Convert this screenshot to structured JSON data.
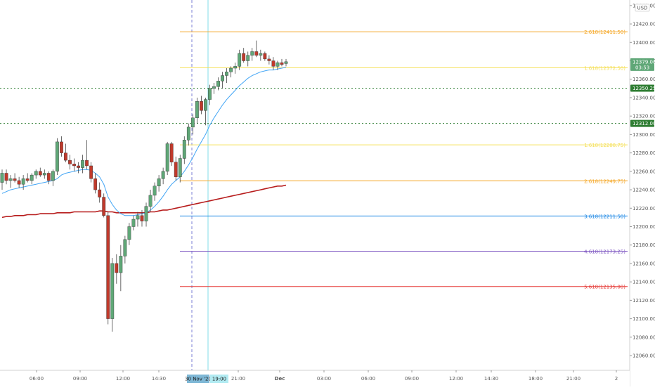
{
  "chart_data": {
    "type": "candlestick",
    "currency": "USD",
    "y_range": [
      12044,
      12446
    ],
    "y_ticks": [
      12060,
      12080,
      12100,
      12120,
      12140,
      12160,
      12180,
      12200,
      12220,
      12240,
      12260,
      12280,
      12300,
      12320,
      12340,
      12360,
      12380,
      12400,
      12420,
      12440
    ],
    "x_ticks": [
      "06:00",
      "09:00",
      "12:00",
      "14:30",
      "21:00",
      "Dec",
      "03:00",
      "06:00",
      "09:00",
      "12:00",
      "14:30",
      "18:00",
      "21:00",
      "2"
    ],
    "date_label": "30 Nov '20",
    "time_label": "19:00",
    "last_price": {
      "value": "12379.00",
      "countdown": "03:53"
    },
    "price_labels": [
      {
        "value": "12350.25",
        "color": "#2e7d32"
      },
      {
        "value": "12312.00",
        "color": "#2e7d32"
      }
    ],
    "fib_levels": [
      {
        "ratio": "2.618",
        "value": 12411.5,
        "label": "2.618(12411.50)",
        "color": "#f5a623"
      },
      {
        "ratio": "1.618",
        "value": 12372.5,
        "label": "1.618(12372.50)",
        "color": "#f5e05a"
      },
      {
        "ratio": "1.618",
        "value": 12288.75,
        "label": "1.618(12288.75)",
        "color": "#f5e05a"
      },
      {
        "ratio": "2.618",
        "value": 12249.75,
        "label": "2.618(12249.75)",
        "color": "#f5a623"
      },
      {
        "ratio": "3.618",
        "value": 12211.5,
        "label": "3.618(12211.50)",
        "color": "#1e88e5"
      },
      {
        "ratio": "4.618",
        "value": 12173.25,
        "label": "4.618(12173.25)",
        "color": "#7e57c2"
      },
      {
        "ratio": "5.618",
        "value": 12135.0,
        "label": "5.618(12135.00)",
        "color": "#e53935"
      }
    ],
    "horizontal_lines": [
      {
        "value": 12350.25,
        "color": "#2e7d32",
        "style": "dotted"
      },
      {
        "value": 12312.0,
        "color": "#2e7d32",
        "style": "dotted"
      }
    ],
    "candles": [
      {
        "o": 12248,
        "h": 12262,
        "l": 12240,
        "c": 12258
      },
      {
        "o": 12258,
        "h": 12262,
        "l": 12246,
        "c": 12250
      },
      {
        "o": 12250,
        "h": 12256,
        "l": 12242,
        "c": 12252
      },
      {
        "o": 12252,
        "h": 12258,
        "l": 12248,
        "c": 12250
      },
      {
        "o": 12250,
        "h": 12254,
        "l": 12242,
        "c": 12246
      },
      {
        "o": 12246,
        "h": 12256,
        "l": 12240,
        "c": 12252
      },
      {
        "o": 12252,
        "h": 12258,
        "l": 12248,
        "c": 12250
      },
      {
        "o": 12250,
        "h": 12258,
        "l": 12246,
        "c": 12256
      },
      {
        "o": 12256,
        "h": 12262,
        "l": 12252,
        "c": 12260
      },
      {
        "o": 12260,
        "h": 12264,
        "l": 12254,
        "c": 12256
      },
      {
        "o": 12256,
        "h": 12262,
        "l": 12252,
        "c": 12258
      },
      {
        "o": 12258,
        "h": 12260,
        "l": 12246,
        "c": 12250
      },
      {
        "o": 12250,
        "h": 12262,
        "l": 12244,
        "c": 12260
      },
      {
        "o": 12260,
        "h": 12296,
        "l": 12256,
        "c": 12292
      },
      {
        "o": 12292,
        "h": 12298,
        "l": 12276,
        "c": 12280
      },
      {
        "o": 12280,
        "h": 12290,
        "l": 12270,
        "c": 12272
      },
      {
        "o": 12272,
        "h": 12278,
        "l": 12262,
        "c": 12268
      },
      {
        "o": 12268,
        "h": 12274,
        "l": 12260,
        "c": 12266
      },
      {
        "o": 12266,
        "h": 12270,
        "l": 12258,
        "c": 12264
      },
      {
        "o": 12264,
        "h": 12278,
        "l": 12258,
        "c": 12272
      },
      {
        "o": 12272,
        "h": 12294,
        "l": 12262,
        "c": 12266
      },
      {
        "o": 12266,
        "h": 12270,
        "l": 12248,
        "c": 12252
      },
      {
        "o": 12252,
        "h": 12258,
        "l": 12236,
        "c": 12240
      },
      {
        "o": 12240,
        "h": 12248,
        "l": 12226,
        "c": 12232
      },
      {
        "o": 12232,
        "h": 12236,
        "l": 12210,
        "c": 12212
      },
      {
        "o": 12212,
        "h": 12216,
        "l": 12094,
        "c": 12100
      },
      {
        "o": 12100,
        "h": 12166,
        "l": 12086,
        "c": 12160
      },
      {
        "o": 12160,
        "h": 12170,
        "l": 12138,
        "c": 12150
      },
      {
        "o": 12150,
        "h": 12180,
        "l": 12130,
        "c": 12168
      },
      {
        "o": 12168,
        "h": 12190,
        "l": 12160,
        "c": 12186
      },
      {
        "o": 12186,
        "h": 12204,
        "l": 12180,
        "c": 12200
      },
      {
        "o": 12200,
        "h": 12212,
        "l": 12196,
        "c": 12208
      },
      {
        "o": 12208,
        "h": 12216,
        "l": 12200,
        "c": 12212
      },
      {
        "o": 12212,
        "h": 12218,
        "l": 12200,
        "c": 12206
      },
      {
        "o": 12206,
        "h": 12226,
        "l": 12200,
        "c": 12222
      },
      {
        "o": 12222,
        "h": 12240,
        "l": 12216,
        "c": 12234
      },
      {
        "o": 12234,
        "h": 12248,
        "l": 12228,
        "c": 12244
      },
      {
        "o": 12244,
        "h": 12256,
        "l": 12238,
        "c": 12252
      },
      {
        "o": 12252,
        "h": 12264,
        "l": 12246,
        "c": 12260
      },
      {
        "o": 12260,
        "h": 12292,
        "l": 12256,
        "c": 12290
      },
      {
        "o": 12290,
        "h": 12292,
        "l": 12266,
        "c": 12270
      },
      {
        "o": 12270,
        "h": 12276,
        "l": 12250,
        "c": 12254
      },
      {
        "o": 12254,
        "h": 12278,
        "l": 12248,
        "c": 12274
      },
      {
        "o": 12274,
        "h": 12298,
        "l": 12268,
        "c": 12294
      },
      {
        "o": 12294,
        "h": 12312,
        "l": 12288,
        "c": 12308
      },
      {
        "o": 12308,
        "h": 12322,
        "l": 12300,
        "c": 12318
      },
      {
        "o": 12318,
        "h": 12340,
        "l": 12312,
        "c": 12336
      },
      {
        "o": 12336,
        "h": 12342,
        "l": 12322,
        "c": 12326
      },
      {
        "o": 12326,
        "h": 12340,
        "l": 12310,
        "c": 12338
      },
      {
        "o": 12338,
        "h": 12354,
        "l": 12332,
        "c": 12350
      },
      {
        "o": 12350,
        "h": 12356,
        "l": 12344,
        "c": 12352
      },
      {
        "o": 12352,
        "h": 12362,
        "l": 12348,
        "c": 12358
      },
      {
        "o": 12358,
        "h": 12368,
        "l": 12350,
        "c": 12364
      },
      {
        "o": 12364,
        "h": 12372,
        "l": 12356,
        "c": 12368
      },
      {
        "o": 12368,
        "h": 12374,
        "l": 12362,
        "c": 12372
      },
      {
        "o": 12372,
        "h": 12378,
        "l": 12366,
        "c": 12374
      },
      {
        "o": 12374,
        "h": 12392,
        "l": 12370,
        "c": 12388
      },
      {
        "o": 12388,
        "h": 12394,
        "l": 12378,
        "c": 12380
      },
      {
        "o": 12380,
        "h": 12390,
        "l": 12374,
        "c": 12386
      },
      {
        "o": 12386,
        "h": 12394,
        "l": 12380,
        "c": 12390
      },
      {
        "o": 12390,
        "h": 12402,
        "l": 12384,
        "c": 12386
      },
      {
        "o": 12386,
        "h": 12392,
        "l": 12380,
        "c": 12388
      },
      {
        "o": 12388,
        "h": 12390,
        "l": 12380,
        "c": 12382
      },
      {
        "o": 12382,
        "h": 12386,
        "l": 12376,
        "c": 12380
      },
      {
        "o": 12380,
        "h": 12384,
        "l": 12370,
        "c": 12374
      },
      {
        "o": 12374,
        "h": 12380,
        "l": 12370,
        "c": 12378
      },
      {
        "o": 12378,
        "h": 12382,
        "l": 12374,
        "c": 12376
      },
      {
        "o": 12377,
        "h": 12382,
        "l": 12374,
        "c": 12379
      }
    ],
    "ema_fast": [
      12236,
      12238,
      12240,
      12241,
      12242,
      12243,
      12244,
      12245,
      12246,
      12247,
      12248,
      12249,
      12250,
      12252,
      12256,
      12258,
      12259,
      12260,
      12261,
      12262,
      12262,
      12261,
      12258,
      12254,
      12246,
      12232,
      12224,
      12218,
      12214,
      12212,
      12212,
      12212,
      12213,
      12214,
      12215,
      12218,
      12222,
      12227,
      12233,
      12240,
      12246,
      12250,
      12254,
      12260,
      12267,
      12275,
      12284,
      12292,
      12300,
      12310,
      12318,
      12325,
      12332,
      12338,
      12343,
      12348,
      12353,
      12357,
      12361,
      12364,
      12366,
      12368,
      12369,
      12370,
      12370,
      12371,
      12372,
      12373
    ],
    "ema_slow": [
      12210,
      12211,
      12211,
      12212,
      12212,
      12212,
      12213,
      12213,
      12213,
      12214,
      12214,
      12214,
      12214,
      12215,
      12215,
      12215,
      12215,
      12216,
      12216,
      12216,
      12216,
      12216,
      12216,
      12217,
      12217,
      12216,
      12216,
      12215,
      12215,
      12215,
      12215,
      12215,
      12215,
      12215,
      12215,
      12216,
      12216,
      12217,
      12218,
      12218,
      12219,
      12220,
      12221,
      12222,
      12223,
      12224,
      12225,
      12226,
      12227,
      12228,
      12229,
      12230,
      12231,
      12232,
      12233,
      12234,
      12235,
      12236,
      12237,
      12238,
      12239,
      12240,
      12241,
      12242,
      12243,
      12244,
      12244,
      12245
    ]
  }
}
